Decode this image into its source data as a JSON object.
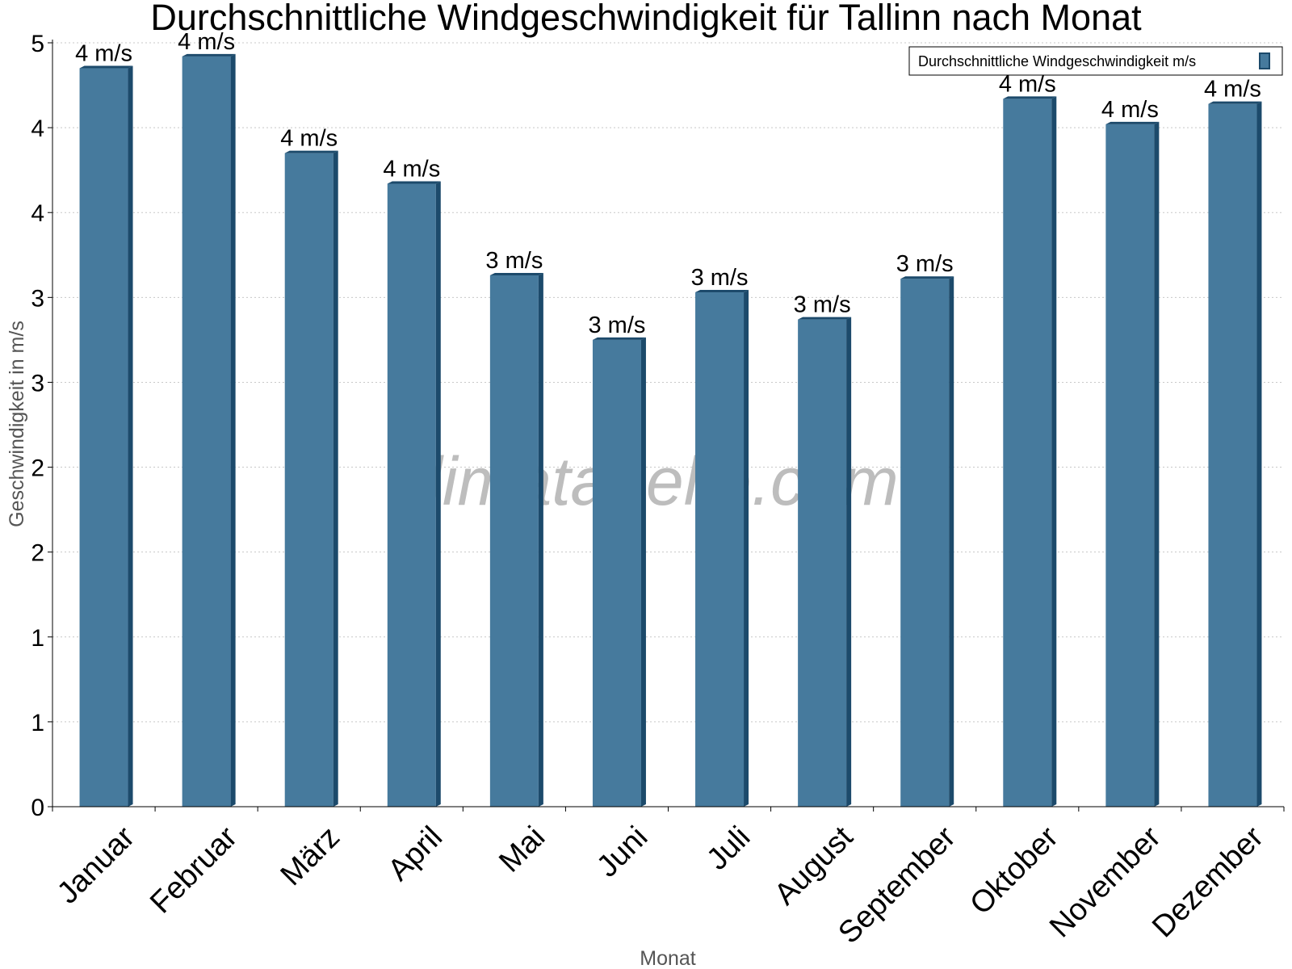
{
  "chart_data": {
    "type": "bar",
    "title": "Durchschnittliche Windgeschwindigkeit für Tallinn nach Monat",
    "xlabel": "Monat",
    "ylabel": "Geschwindigkeit in m/s",
    "categories": [
      "Januar",
      "Februar",
      "März",
      "April",
      "Mai",
      "Juni",
      "Juli",
      "August",
      "September",
      "Oktober",
      "November",
      "Dezember"
    ],
    "series": [
      {
        "name": "Durchschnittliche Windgeschwindigkeit m/s",
        "values": [
          4.35,
          4.42,
          3.85,
          3.67,
          3.13,
          2.75,
          3.03,
          2.87,
          3.11,
          4.17,
          4.02,
          4.14
        ],
        "data_labels": [
          "4 m/s",
          "4 m/s",
          "4 m/s",
          "4 m/s",
          "3 m/s",
          "3 m/s",
          "3 m/s",
          "3 m/s",
          "3 m/s",
          "4 m/s",
          "4 m/s",
          "4 m/s"
        ],
        "color": "#467a9d",
        "side_color": "#1c4a6b"
      }
    ],
    "ylim": [
      0,
      4.5
    ],
    "yticks": [
      0,
      0.5,
      1,
      1.5,
      2,
      2.5,
      3,
      3.5,
      4,
      4.5
    ],
    "ytick_labels": [
      "0",
      "1",
      "1",
      "2",
      "2",
      "3",
      "3",
      "4",
      "4",
      "5"
    ],
    "grid": true,
    "legend_position": "top-right",
    "watermark": "klimatabelle.com"
  }
}
